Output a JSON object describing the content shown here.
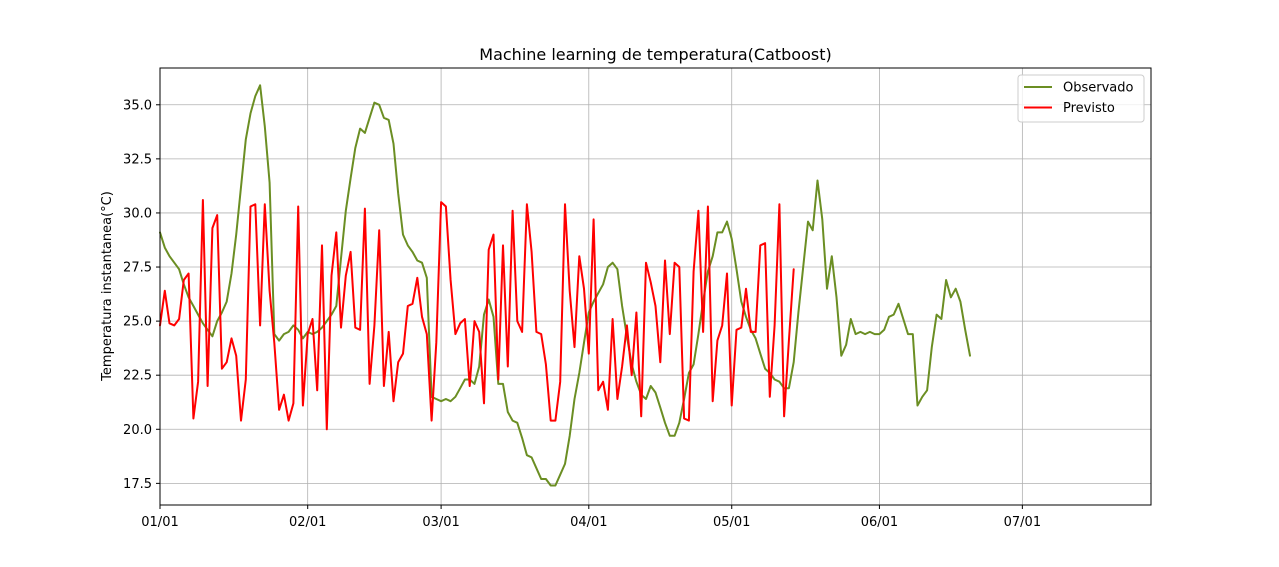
{
  "chart_data": {
    "type": "line",
    "title": "Machine learning de temperatura(Catboost)",
    "xlabel": "",
    "ylabel": "Temperatura instantanea(°C)",
    "x_ticks": [
      "01/01",
      "02/01",
      "03/01",
      "04/01",
      "05/01",
      "06/01",
      "07/01"
    ],
    "y_ticks": [
      "17.5",
      "20.0",
      "22.5",
      "25.0",
      "27.5",
      "30.0",
      "32.5",
      "35.0"
    ],
    "xlim_days": [
      0,
      208
    ],
    "ylim": [
      16.5,
      36.7
    ],
    "grid": true,
    "legend_position": "top-right",
    "series": [
      {
        "name": "Observado",
        "color": "#6b8e23",
        "points": [
          [
            0,
            29.1
          ],
          [
            1,
            28.4
          ],
          [
            2,
            28.0
          ],
          [
            3,
            27.7
          ],
          [
            4,
            27.4
          ],
          [
            5,
            26.7
          ],
          [
            6,
            26.1
          ],
          [
            7,
            25.7
          ],
          [
            8,
            25.3
          ],
          [
            9,
            24.9
          ],
          [
            10,
            24.6
          ],
          [
            11,
            24.3
          ],
          [
            12,
            25.0
          ],
          [
            13,
            25.4
          ],
          [
            14,
            25.9
          ],
          [
            15,
            27.2
          ],
          [
            16,
            29.0
          ],
          [
            17,
            31.2
          ],
          [
            18,
            33.4
          ],
          [
            19,
            34.6
          ],
          [
            20,
            35.4
          ],
          [
            21,
            35.9
          ],
          [
            22,
            34.0
          ],
          [
            23,
            31.4
          ],
          [
            24,
            24.4
          ],
          [
            25,
            24.1
          ],
          [
            26,
            24.4
          ],
          [
            27,
            24.5
          ],
          [
            28,
            24.8
          ],
          [
            29,
            24.6
          ],
          [
            30,
            24.2
          ],
          [
            31,
            24.5
          ],
          [
            32,
            24.4
          ],
          [
            33,
            24.5
          ],
          [
            34,
            24.7
          ],
          [
            35,
            25.0
          ],
          [
            36,
            25.3
          ],
          [
            37,
            25.7
          ],
          [
            38,
            27.9
          ],
          [
            39,
            30.1
          ],
          [
            40,
            31.6
          ],
          [
            41,
            33.0
          ],
          [
            42,
            33.9
          ],
          [
            43,
            33.7
          ],
          [
            44,
            34.4
          ],
          [
            45,
            35.1
          ],
          [
            46,
            35.0
          ],
          [
            47,
            34.4
          ],
          [
            48,
            34.3
          ],
          [
            49,
            33.2
          ],
          [
            50,
            30.9
          ],
          [
            51,
            29.0
          ],
          [
            52,
            28.5
          ],
          [
            53,
            28.2
          ],
          [
            54,
            27.8
          ],
          [
            55,
            27.7
          ],
          [
            56,
            27.0
          ],
          [
            57,
            21.5
          ],
          [
            58,
            21.4
          ],
          [
            59,
            21.3
          ],
          [
            60,
            21.4
          ],
          [
            61,
            21.3
          ],
          [
            62,
            21.5
          ],
          [
            63,
            21.9
          ],
          [
            64,
            22.3
          ],
          [
            65,
            22.3
          ],
          [
            66,
            22.1
          ],
          [
            67,
            22.9
          ],
          [
            68,
            25.3
          ],
          [
            69,
            26.0
          ],
          [
            70,
            25.2
          ],
          [
            71,
            22.1
          ],
          [
            72,
            22.1
          ],
          [
            73,
            20.8
          ],
          [
            74,
            20.4
          ],
          [
            75,
            20.3
          ],
          [
            76,
            19.6
          ],
          [
            77,
            18.8
          ],
          [
            78,
            18.7
          ],
          [
            79,
            18.2
          ],
          [
            80,
            17.7
          ],
          [
            81,
            17.7
          ],
          [
            82,
            17.4
          ],
          [
            83,
            17.4
          ],
          [
            84,
            17.9
          ],
          [
            85,
            18.4
          ],
          [
            86,
            19.7
          ],
          [
            87,
            21.4
          ],
          [
            88,
            22.6
          ],
          [
            89,
            24.0
          ],
          [
            90,
            25.4
          ],
          [
            91,
            25.9
          ],
          [
            92,
            26.3
          ],
          [
            93,
            26.7
          ],
          [
            94,
            27.5
          ],
          [
            95,
            27.7
          ],
          [
            96,
            27.4
          ],
          [
            97,
            25.7
          ],
          [
            98,
            24.3
          ],
          [
            99,
            23.0
          ],
          [
            100,
            22.2
          ],
          [
            101,
            21.6
          ],
          [
            102,
            21.4
          ],
          [
            103,
            22.0
          ],
          [
            104,
            21.7
          ],
          [
            105,
            21.0
          ],
          [
            106,
            20.3
          ],
          [
            107,
            19.7
          ],
          [
            108,
            19.7
          ],
          [
            109,
            20.3
          ],
          [
            110,
            21.4
          ],
          [
            111,
            22.6
          ],
          [
            112,
            23.0
          ],
          [
            113,
            24.4
          ],
          [
            114,
            25.9
          ],
          [
            115,
            27.3
          ],
          [
            116,
            28.0
          ],
          [
            117,
            29.1
          ],
          [
            118,
            29.1
          ],
          [
            119,
            29.6
          ],
          [
            120,
            28.8
          ],
          [
            121,
            27.4
          ],
          [
            122,
            25.9
          ],
          [
            123,
            25.2
          ],
          [
            124,
            24.6
          ],
          [
            125,
            24.2
          ],
          [
            126,
            23.5
          ],
          [
            127,
            22.8
          ],
          [
            128,
            22.6
          ],
          [
            129,
            22.3
          ],
          [
            130,
            22.2
          ],
          [
            131,
            21.9
          ],
          [
            132,
            21.9
          ],
          [
            133,
            23.1
          ],
          [
            134,
            25.4
          ],
          [
            135,
            27.5
          ],
          [
            136,
            29.6
          ],
          [
            137,
            29.2
          ],
          [
            138,
            31.5
          ],
          [
            139,
            29.7
          ],
          [
            140,
            26.5
          ],
          [
            141,
            28.0
          ],
          [
            142,
            26.1
          ],
          [
            143,
            23.4
          ],
          [
            144,
            23.9
          ],
          [
            145,
            25.1
          ],
          [
            146,
            24.4
          ],
          [
            147,
            24.5
          ],
          [
            148,
            24.4
          ],
          [
            149,
            24.5
          ],
          [
            150,
            24.4
          ],
          [
            151,
            24.4
          ],
          [
            152,
            24.6
          ],
          [
            153,
            25.2
          ],
          [
            154,
            25.3
          ],
          [
            155,
            25.8
          ],
          [
            156,
            25.1
          ],
          [
            157,
            24.4
          ],
          [
            158,
            24.4
          ],
          [
            159,
            21.1
          ],
          [
            160,
            21.5
          ],
          [
            161,
            21.8
          ],
          [
            162,
            23.8
          ],
          [
            163,
            25.3
          ],
          [
            164,
            25.1
          ],
          [
            165,
            26.9
          ],
          [
            166,
            26.1
          ],
          [
            167,
            26.5
          ],
          [
            168,
            25.9
          ],
          [
            169,
            24.6
          ],
          [
            170,
            23.4
          ]
        ]
      },
      {
        "name": "Previsto",
        "color": "#ff0000",
        "points": [
          [
            0,
            24.8
          ],
          [
            1,
            26.4
          ],
          [
            2,
            24.9
          ],
          [
            3,
            24.8
          ],
          [
            4,
            25.1
          ],
          [
            5,
            26.9
          ],
          [
            6,
            27.2
          ],
          [
            7,
            20.5
          ],
          [
            8,
            22.2
          ],
          [
            9,
            30.6
          ],
          [
            10,
            22.0
          ],
          [
            11,
            29.3
          ],
          [
            12,
            29.9
          ],
          [
            13,
            22.8
          ],
          [
            14,
            23.1
          ],
          [
            15,
            24.2
          ],
          [
            16,
            23.4
          ],
          [
            17,
            20.4
          ],
          [
            18,
            22.3
          ],
          [
            19,
            30.3
          ],
          [
            20,
            30.4
          ],
          [
            21,
            24.8
          ],
          [
            22,
            30.4
          ],
          [
            23,
            26.4
          ],
          [
            24,
            24.0
          ],
          [
            25,
            20.9
          ],
          [
            26,
            21.6
          ],
          [
            27,
            20.4
          ],
          [
            28,
            21.2
          ],
          [
            29,
            30.3
          ],
          [
            30,
            21.1
          ],
          [
            31,
            24.4
          ],
          [
            32,
            25.1
          ],
          [
            33,
            21.8
          ],
          [
            34,
            28.5
          ],
          [
            35,
            20.0
          ],
          [
            36,
            27.1
          ],
          [
            37,
            29.1
          ],
          [
            38,
            24.7
          ],
          [
            39,
            27.1
          ],
          [
            40,
            28.2
          ],
          [
            41,
            24.7
          ],
          [
            42,
            24.6
          ],
          [
            43,
            30.2
          ],
          [
            44,
            22.1
          ],
          [
            45,
            24.8
          ],
          [
            46,
            29.2
          ],
          [
            47,
            22.0
          ],
          [
            48,
            24.5
          ],
          [
            49,
            21.3
          ],
          [
            50,
            23.1
          ],
          [
            51,
            23.5
          ],
          [
            52,
            25.7
          ],
          [
            53,
            25.8
          ],
          [
            54,
            27.0
          ],
          [
            55,
            25.2
          ],
          [
            56,
            24.4
          ],
          [
            57,
            20.4
          ],
          [
            58,
            24.0
          ],
          [
            59,
            30.5
          ],
          [
            60,
            30.3
          ],
          [
            61,
            26.9
          ],
          [
            62,
            24.4
          ],
          [
            63,
            24.9
          ],
          [
            64,
            25.1
          ],
          [
            65,
            22.0
          ],
          [
            66,
            25.0
          ],
          [
            67,
            24.5
          ],
          [
            68,
            21.2
          ],
          [
            69,
            28.3
          ],
          [
            70,
            29.0
          ],
          [
            71,
            22.3
          ],
          [
            72,
            28.5
          ],
          [
            73,
            22.9
          ],
          [
            74,
            30.1
          ],
          [
            75,
            25.0
          ],
          [
            76,
            24.5
          ],
          [
            77,
            30.4
          ],
          [
            78,
            28.2
          ],
          [
            79,
            24.5
          ],
          [
            80,
            24.4
          ],
          [
            81,
            23.0
          ],
          [
            82,
            20.4
          ],
          [
            83,
            20.4
          ],
          [
            84,
            22.2
          ],
          [
            85,
            30.4
          ],
          [
            86,
            26.4
          ],
          [
            87,
            23.8
          ],
          [
            88,
            28.0
          ],
          [
            89,
            26.5
          ],
          [
            90,
            23.5
          ],
          [
            91,
            29.7
          ],
          [
            92,
            21.8
          ],
          [
            93,
            22.2
          ],
          [
            94,
            20.9
          ],
          [
            95,
            25.1
          ],
          [
            96,
            21.4
          ],
          [
            97,
            22.9
          ],
          [
            98,
            24.8
          ],
          [
            99,
            22.5
          ],
          [
            100,
            25.4
          ],
          [
            101,
            20.6
          ],
          [
            102,
            27.7
          ],
          [
            103,
            26.8
          ],
          [
            104,
            25.7
          ],
          [
            105,
            23.1
          ],
          [
            106,
            27.8
          ],
          [
            107,
            24.4
          ],
          [
            108,
            27.7
          ],
          [
            109,
            27.5
          ],
          [
            110,
            20.5
          ],
          [
            111,
            20.4
          ],
          [
            112,
            27.3
          ],
          [
            113,
            30.1
          ],
          [
            114,
            24.5
          ],
          [
            115,
            30.3
          ],
          [
            116,
            21.3
          ],
          [
            117,
            24.1
          ],
          [
            118,
            24.8
          ],
          [
            119,
            27.2
          ],
          [
            120,
            21.1
          ],
          [
            121,
            24.6
          ],
          [
            122,
            24.7
          ],
          [
            123,
            26.5
          ],
          [
            124,
            24.5
          ],
          [
            125,
            24.5
          ],
          [
            126,
            28.5
          ],
          [
            127,
            28.6
          ],
          [
            128,
            21.5
          ],
          [
            129,
            24.8
          ],
          [
            130,
            30.4
          ],
          [
            131,
            20.6
          ],
          [
            132,
            24.1
          ],
          [
            133,
            27.4
          ]
        ]
      }
    ]
  }
}
